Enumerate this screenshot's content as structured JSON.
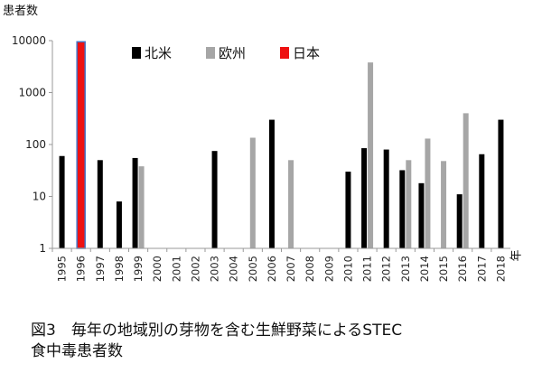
{
  "chart_data": {
    "type": "bar",
    "ylabel": "患者数",
    "xlabel": "年",
    "yscale": "log",
    "ylim": [
      1,
      10000
    ],
    "yticks": [
      1,
      10,
      100,
      1000,
      10000
    ],
    "ytick_labels": [
      "1",
      "10",
      "100",
      "1000",
      "10000"
    ],
    "grid": false,
    "legend_position": "top-center",
    "categories": [
      "1995",
      "1996",
      "1997",
      "1998",
      "1999",
      "2000",
      "2001",
      "2002",
      "2003",
      "2004",
      "2005",
      "2006",
      "2007",
      "2008",
      "2009",
      "2010",
      "2011",
      "2012",
      "2013",
      "2014",
      "2015",
      "2016",
      "2017",
      "2018"
    ],
    "series": [
      {
        "name": "北米",
        "color": "#000000",
        "values": [
          60,
          60,
          50,
          8,
          55,
          null,
          null,
          null,
          75,
          null,
          null,
          300,
          null,
          null,
          null,
          30,
          85,
          80,
          32,
          18,
          null,
          11,
          65,
          300
        ]
      },
      {
        "name": "欧州",
        "color": "#a6a6a6",
        "values": [
          null,
          null,
          null,
          null,
          38,
          null,
          null,
          null,
          null,
          null,
          135,
          null,
          50,
          null,
          null,
          null,
          3800,
          null,
          50,
          130,
          48,
          400,
          null,
          null
        ]
      },
      {
        "name": "日本",
        "color": "#ee1111",
        "outline": "#4472c4",
        "values": [
          null,
          9500,
          null,
          null,
          null,
          null,
          null,
          null,
          null,
          null,
          null,
          null,
          null,
          null,
          null,
          null,
          null,
          null,
          null,
          null,
          null,
          null,
          null,
          null
        ]
      }
    ]
  },
  "caption": {
    "line1": "図3　毎年の地域別の芽物を含む生鮮野菜によるSTEC",
    "line2": "食中毒患者数"
  }
}
